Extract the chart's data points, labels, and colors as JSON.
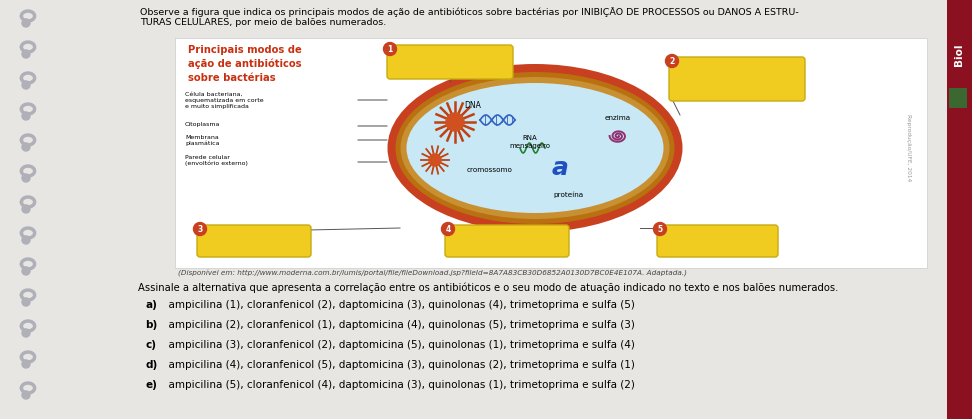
{
  "header_line1": "Observe a figura que indica os principais modos de ação de antibióticos sobre bactérias por INIBIÇÃO DE PROCESSOS ou DANOS A ESTRU-",
  "header_line2": "TURAS CELULARES, por meio de balões numerados.",
  "title_text": "Principais modos de\nação de antibióticos\nsobre bactérias",
  "citation": "(Disponível em: http://www.moderna.com.br/lumis/portal/file/fileDownload.jsp?fileId=8A7A83CB30D6852A0130D7BC0E4E107A. Adaptada.)",
  "question_text": "Assinale a alternativa que apresenta a correlação entre os antibióticos e o seu modo de atuação indicado no texto e nos balões numerados.",
  "options_bold": [
    "a)",
    "b)",
    "c)",
    "d)",
    "e)"
  ],
  "options_rest": [
    "  ampicilina (1), cloranfenicol (2), daptomicina (3), quinolonas (4), trimetoprima e sulfa (5)",
    "  ampicilina (2), cloranfenicol (1), daptomicina (4), quinolonas (5), trimetoprima e sulfa (3)",
    "  ampicilina (3), cloranfenicol (2), daptomicina (5), quinolonas (1), trimetoprima e sulfa (4)",
    "  ampicilina (4), cloranfenicol (5), daptomicina (3), quinolonas (2), trimetoprima e sulfa (1)",
    "  ampicilina (5), cloranfenicol (4), daptomicina (3), quinolonas (1), trimetoprima e sulfa (2)"
  ],
  "page_bg": "#e8e6e3",
  "content_bg": "#f2f0ed",
  "fig_bg": "#f0eeeb",
  "cell_fill": "#c8e8f5",
  "cell_outer": "#c84020",
  "cell_middle": "#d4880a",
  "cell_inner_border": "#b87010",
  "balloon_fill": "#f0cc20",
  "balloon_num_bg": "#c84020",
  "right_bar": "#8b1020",
  "title_color": "#c83010",
  "watermark_color": "#999999",
  "spiral_color": "#b0b0b8",
  "left_label_color": "#222222",
  "green_sq": "#3a6830"
}
